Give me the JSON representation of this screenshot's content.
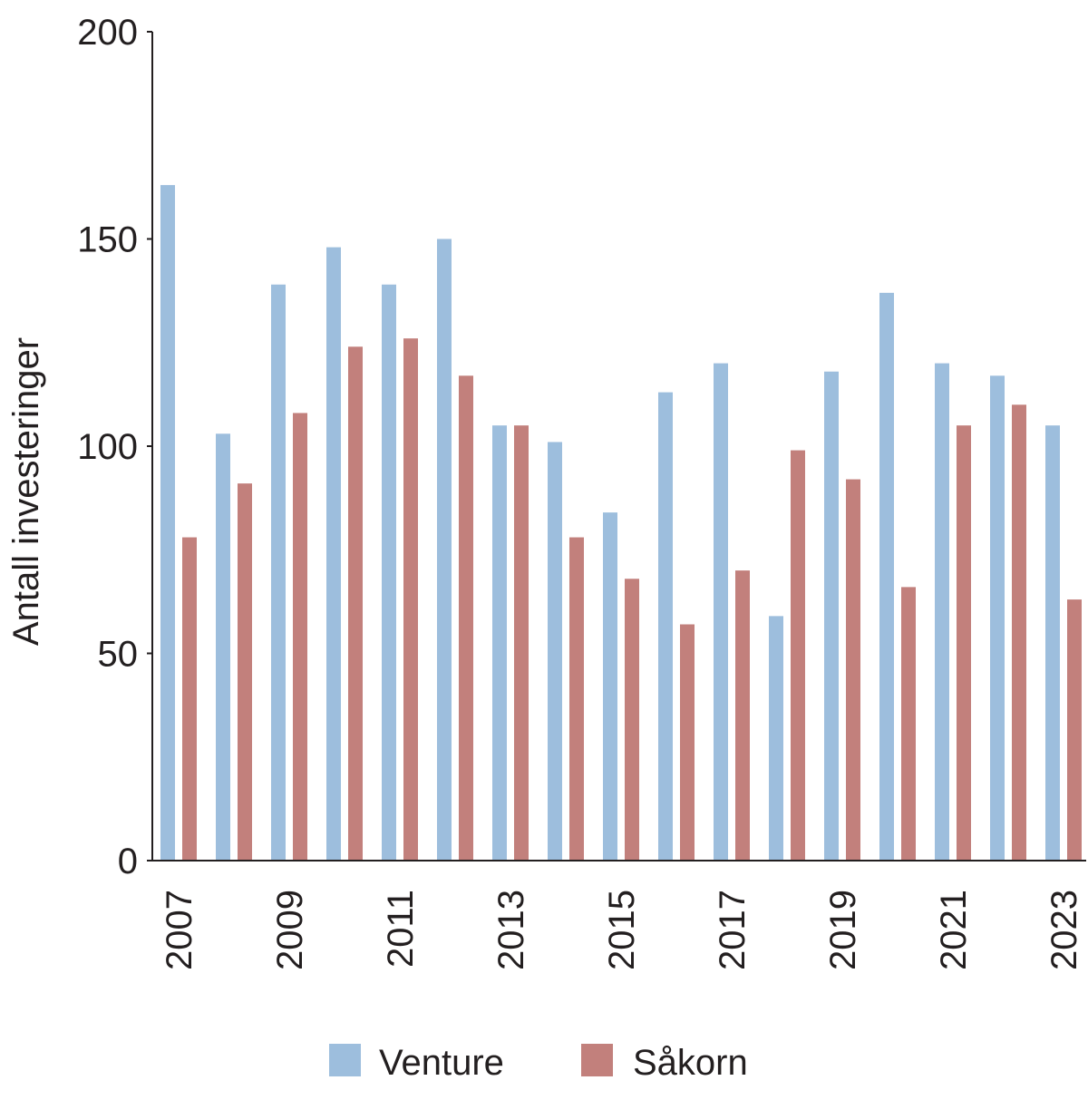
{
  "chart_data": {
    "type": "bar",
    "title": "",
    "xlabel": "",
    "ylabel": "Antall investeringer",
    "ylim": [
      0,
      200
    ],
    "yticks": [
      0,
      50,
      100,
      150,
      200
    ],
    "grid": false,
    "legend_position": "bottom",
    "categories": [
      2007,
      2008,
      2009,
      2010,
      2011,
      2012,
      2013,
      2014,
      2015,
      2016,
      2017,
      2018,
      2019,
      2020,
      2021,
      2022,
      2023
    ],
    "xtick_labels": [
      "2007",
      "",
      "2009",
      "",
      "2011",
      "",
      "2013",
      "",
      "2015",
      "",
      "2017",
      "",
      "2019",
      "",
      "2021",
      "",
      "2023"
    ],
    "series": [
      {
        "name": "Venture",
        "color": "#9dbedd",
        "values": [
          163,
          103,
          139,
          148,
          139,
          150,
          105,
          101,
          84,
          113,
          120,
          59,
          118,
          137,
          120,
          117,
          105
        ]
      },
      {
        "name": "Såkorn",
        "color": "#c2807c",
        "values": [
          78,
          91,
          108,
          124,
          126,
          117,
          105,
          78,
          68,
          57,
          70,
          99,
          92,
          66,
          105,
          110,
          63
        ]
      }
    ]
  }
}
